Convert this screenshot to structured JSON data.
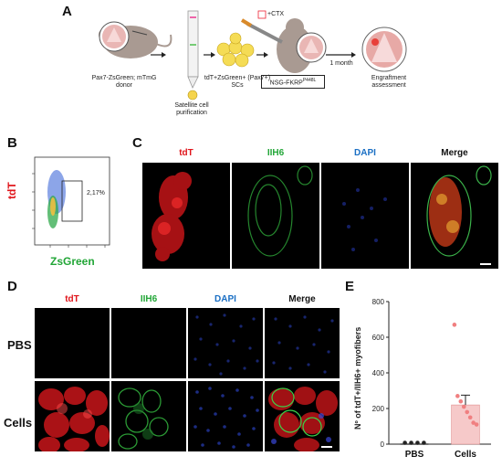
{
  "panels": {
    "A": "A",
    "B": "B",
    "C": "C",
    "D": "D",
    "E": "E"
  },
  "panelA": {
    "donor_label": "Pax7-ZsGreen; mTmG donor",
    "purification_label": "Satellite cell purification",
    "cells_label": "tdT+ZsGreen+ (Pax7+) SCs",
    "injection_label": "+CTX",
    "recipient_label": "NSG-FKRP",
    "recipient_superscript": "P448L",
    "time_label": "1 month",
    "assessment_label": "Engraftment assessment"
  },
  "panelB": {
    "y_label": "tdT",
    "x_label": "ZsGreen",
    "gate_percent": "2,17%"
  },
  "panelC": {
    "channels": [
      "tdT",
      "IIH6",
      "DAPI",
      "Merge"
    ]
  },
  "panelD": {
    "channels": [
      "tdT",
      "IIH6",
      "DAPI",
      "Merge"
    ],
    "rows": [
      "PBS",
      "Cells"
    ]
  },
  "chart_data": {
    "type": "bar",
    "categories": [
      "PBS",
      "Cells"
    ],
    "values": [
      0,
      220
    ],
    "errors": [
      0,
      55
    ],
    "points": [
      [
        0,
        0,
        0,
        0
      ],
      [
        670,
        270,
        240,
        210,
        180,
        150,
        120,
        110
      ]
    ],
    "ylabel": "Nº of tdT+/IIH6+ myofibers",
    "ylim": [
      0,
      800
    ],
    "yticks": [
      0,
      200,
      400,
      600,
      800
    ],
    "bar_color": "#f6c9c9",
    "point_color": "#f07f80"
  }
}
